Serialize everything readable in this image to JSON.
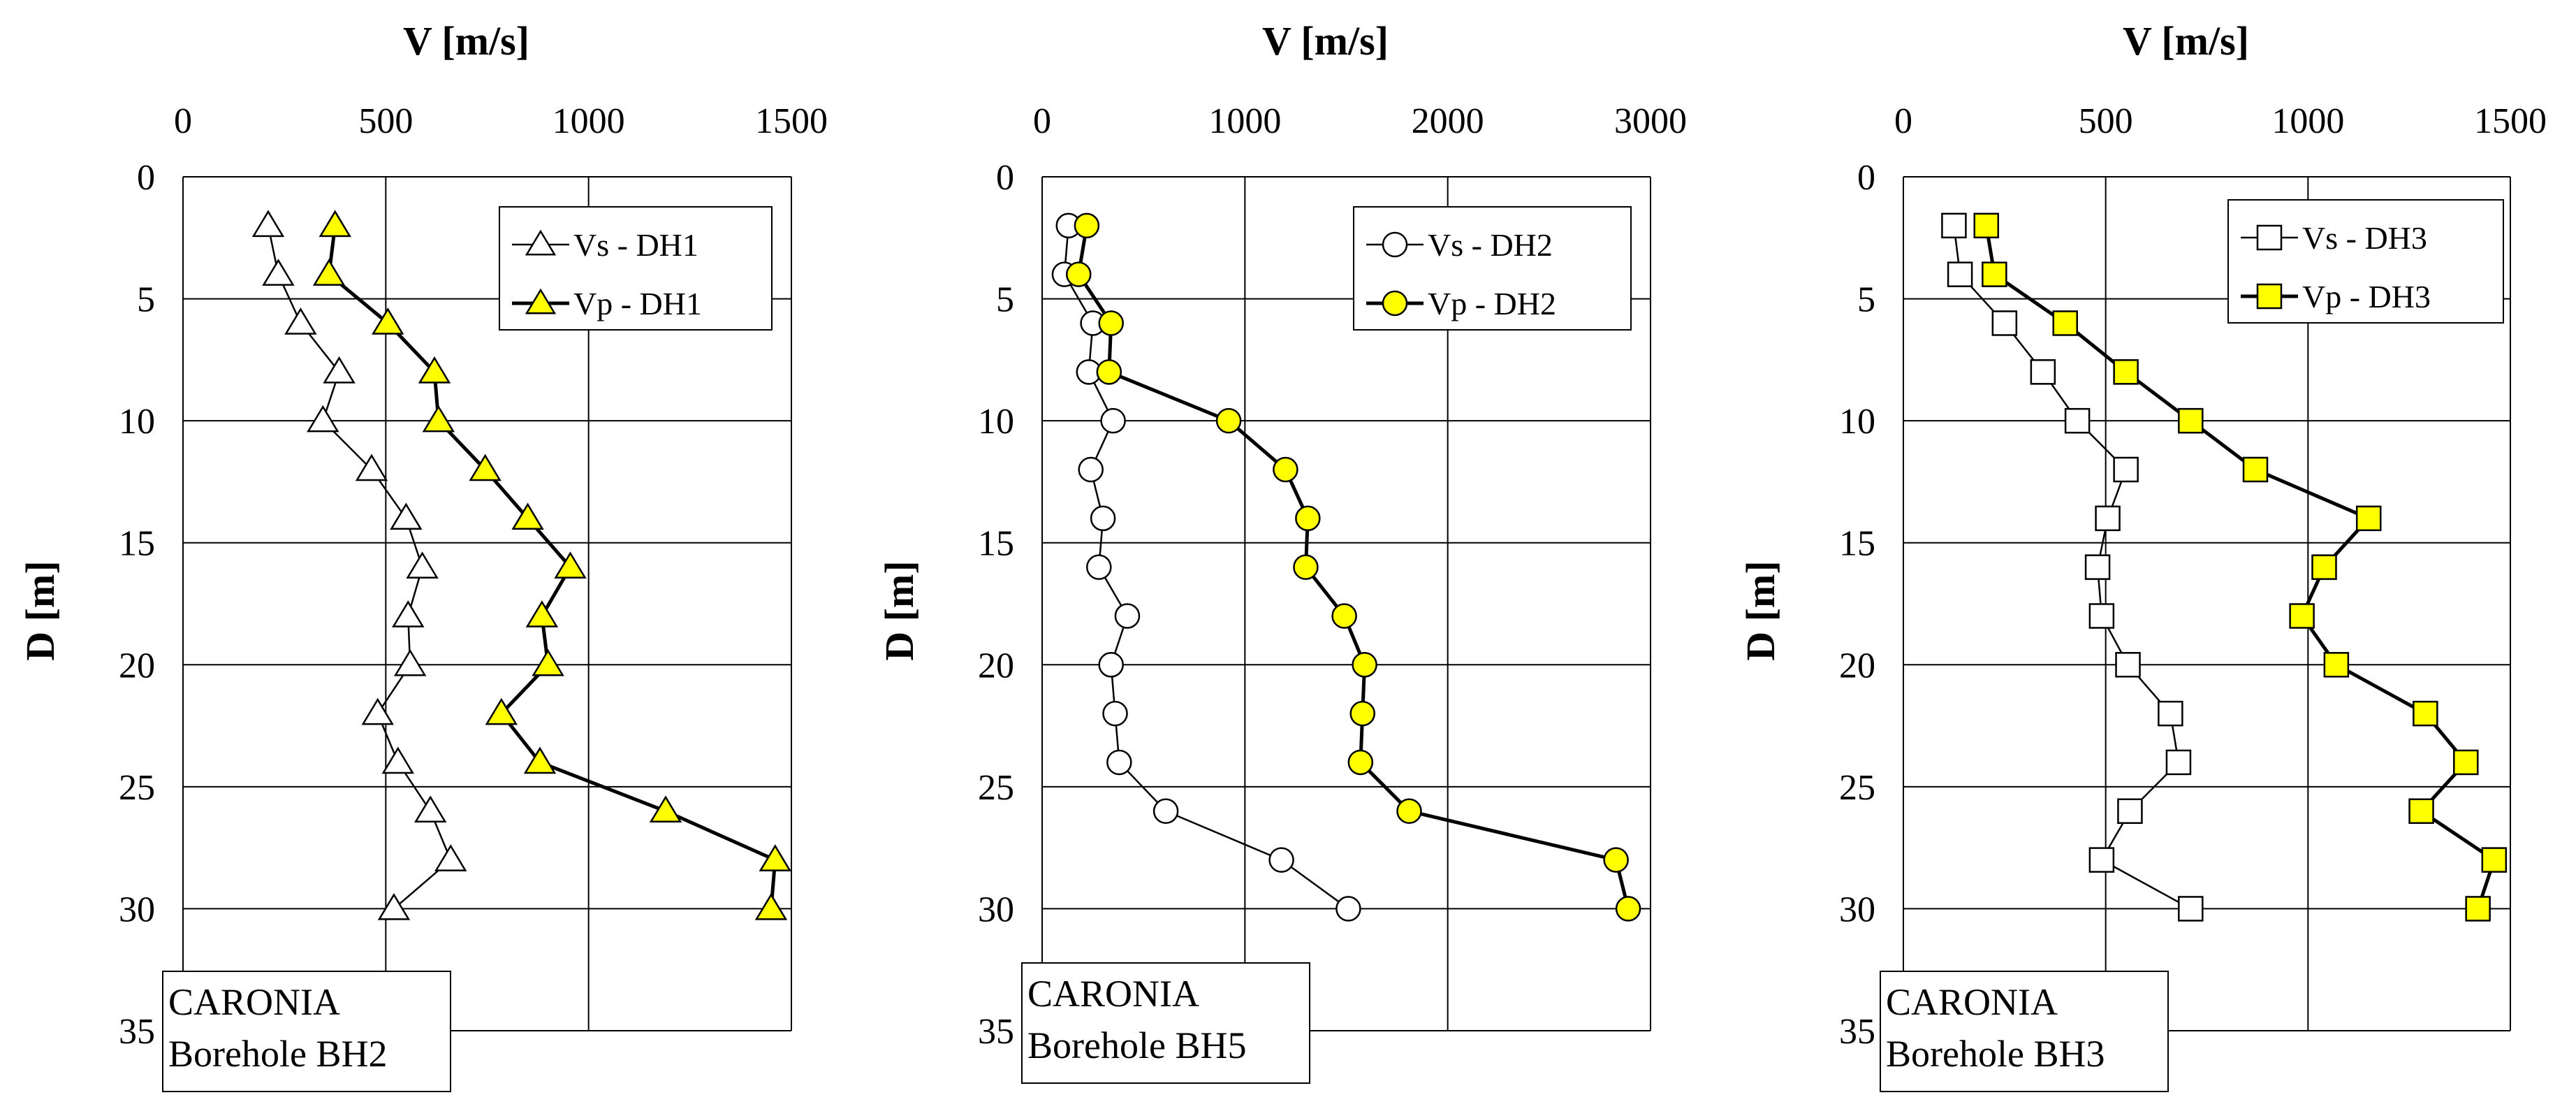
{
  "chart_data": [
    {
      "type": "line",
      "title": "",
      "xlabel": "V [m/s]",
      "ylabel": "D [m]",
      "xlim": [
        0,
        1500
      ],
      "ylim": [
        0,
        35
      ],
      "xticks": [
        0,
        500,
        1000,
        1500
      ],
      "yticks": [
        0,
        5,
        10,
        15,
        20,
        25,
        30,
        35
      ],
      "grid": true,
      "legend_position": "top-right",
      "annotation": [
        "CARONIA",
        "Borehole BH2"
      ],
      "series": [
        {
          "name": "Vs - DH1",
          "marker": "triangle",
          "fill": "#ffffff",
          "line_width": "thin",
          "depth": [
            2,
            4,
            6,
            8,
            10,
            12,
            14,
            16,
            18,
            20,
            22,
            24,
            26,
            28,
            30
          ],
          "velocity": [
            210,
            235,
            290,
            385,
            345,
            465,
            550,
            590,
            555,
            560,
            480,
            530,
            610,
            660,
            520
          ]
        },
        {
          "name": "Vp - DH1",
          "marker": "triangle",
          "fill": "#ffff00",
          "line_width": "thick",
          "depth": [
            2,
            4,
            6,
            8,
            10,
            12,
            14,
            16,
            18,
            20,
            22,
            24,
            26,
            28,
            30
          ],
          "velocity": [
            375,
            360,
            505,
            620,
            630,
            745,
            850,
            955,
            885,
            900,
            785,
            880,
            1190,
            1460,
            1450
          ]
        }
      ]
    },
    {
      "type": "line",
      "title": "",
      "xlabel": "V [m/s]",
      "ylabel": "D [m]",
      "xlim": [
        0,
        3000
      ],
      "ylim": [
        0,
        35
      ],
      "xticks": [
        0,
        1000,
        2000,
        3000
      ],
      "yticks": [
        0,
        5,
        10,
        15,
        20,
        25,
        30,
        35
      ],
      "grid": true,
      "legend_position": "top-right",
      "annotation": [
        "CARONIA",
        "Borehole BH5"
      ],
      "series": [
        {
          "name": "Vs - DH2",
          "marker": "circle",
          "fill": "#ffffff",
          "line_width": "thin",
          "depth": [
            2,
            4,
            6,
            8,
            10,
            12,
            14,
            16,
            18,
            20,
            22,
            24,
            26,
            28,
            30
          ],
          "velocity": [
            130,
            110,
            250,
            230,
            350,
            240,
            300,
            280,
            420,
            340,
            360,
            380,
            610,
            1180,
            1510
          ]
        },
        {
          "name": "Vp - DH2",
          "marker": "circle",
          "fill": "#ffff00",
          "line_width": "thick",
          "depth": [
            2,
            4,
            6,
            8,
            10,
            12,
            14,
            16,
            18,
            20,
            22,
            24,
            26,
            28,
            30
          ],
          "velocity": [
            220,
            180,
            340,
            330,
            920,
            1200,
            1310,
            1300,
            1490,
            1590,
            1580,
            1570,
            1810,
            2830,
            2890
          ]
        }
      ]
    },
    {
      "type": "line",
      "title": "",
      "xlabel": "V [m/s]",
      "ylabel": "D [m]",
      "xlim": [
        0,
        1500
      ],
      "ylim": [
        0,
        35
      ],
      "xticks": [
        0,
        500,
        1000,
        1500
      ],
      "yticks": [
        0,
        5,
        10,
        15,
        20,
        25,
        30,
        35
      ],
      "grid": true,
      "legend_position": "top-right",
      "annotation": [
        "CARONIA",
        "Borehole BH3"
      ],
      "series": [
        {
          "name": "Vs - DH3",
          "marker": "square",
          "fill": "#ffffff",
          "line_width": "thin",
          "depth": [
            2,
            4,
            6,
            8,
            10,
            12,
            14,
            16,
            18,
            20,
            22,
            24,
            26,
            28,
            30
          ],
          "velocity": [
            125,
            140,
            250,
            345,
            430,
            550,
            505,
            480,
            490,
            555,
            660,
            680,
            560,
            490,
            710
          ]
        },
        {
          "name": "Vp - DH3",
          "marker": "square",
          "fill": "#ffff00",
          "line_width": "thick",
          "depth": [
            2,
            4,
            6,
            8,
            10,
            12,
            14,
            16,
            18,
            20,
            22,
            24,
            26,
            28,
            30
          ],
          "velocity": [
            205,
            225,
            400,
            550,
            710,
            870,
            1150,
            1040,
            985,
            1070,
            1290,
            1390,
            1280,
            1460,
            1420
          ]
        }
      ]
    }
  ]
}
